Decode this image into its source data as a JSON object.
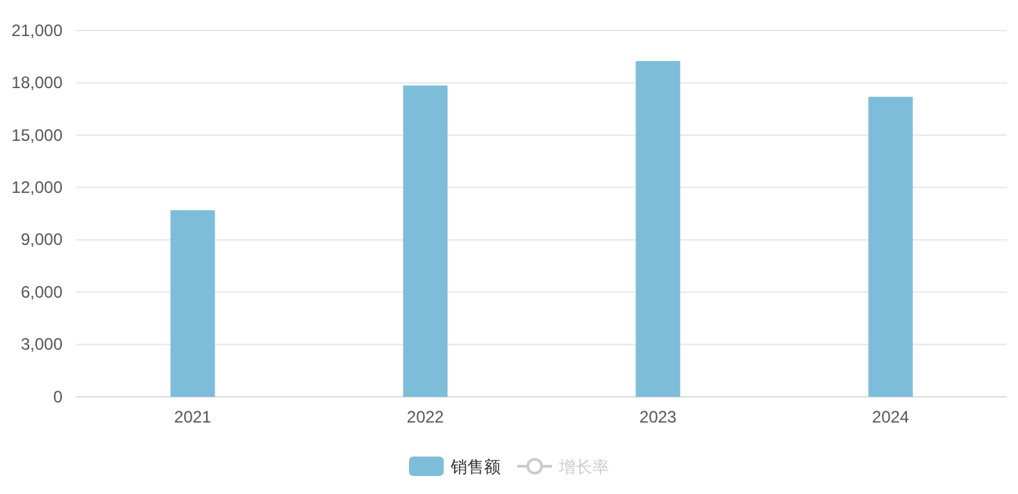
{
  "chart_data": {
    "type": "bar",
    "categories": [
      "2021",
      "2022",
      "2023",
      "2024"
    ],
    "series": [
      {
        "name": "销售额",
        "color": "#7ebdd9",
        "values": [
          10700,
          17850,
          19250,
          17200
        ]
      },
      {
        "name": "增长率",
        "type": "line",
        "color": "#cccccc",
        "marker": "circle",
        "values": [
          null,
          null,
          null,
          null
        ]
      }
    ],
    "ylim": [
      0,
      21000
    ],
    "yticks": [
      {
        "value": 0,
        "label": "0"
      },
      {
        "value": 3000,
        "label": "3,000"
      },
      {
        "value": 6000,
        "label": "6,000"
      },
      {
        "value": 9000,
        "label": "9,000"
      },
      {
        "value": 12000,
        "label": "12,000"
      },
      {
        "value": 15000,
        "label": "15,000"
      },
      {
        "value": 18000,
        "label": "18,000"
      },
      {
        "value": 21000,
        "label": "21,000"
      }
    ],
    "grid": "y",
    "legend": "bottom"
  }
}
